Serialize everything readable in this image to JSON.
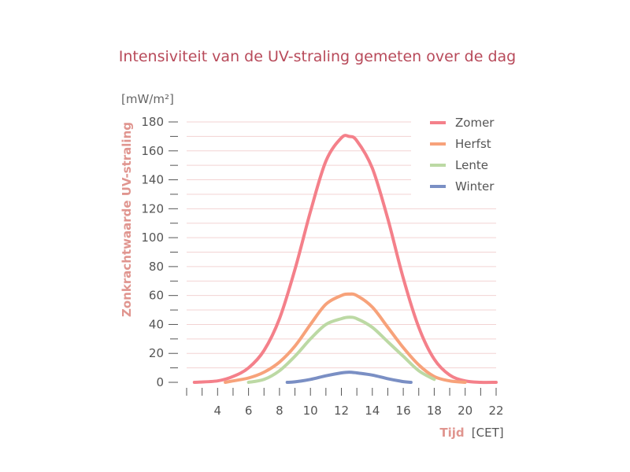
{
  "chart_data": {
    "type": "line",
    "title": "Intensiviteit van de UV-straling gemeten over de dag",
    "ylabel": "Zonkrachtwaarde UV-straling",
    "yunit": "[mW/m²]",
    "xlabel": "Tijd",
    "xunit": "[CET]",
    "xlim": [
      2,
      22
    ],
    "ylim": [
      0,
      180
    ],
    "xticks": [
      4,
      6,
      8,
      10,
      12,
      14,
      16,
      18,
      20,
      22
    ],
    "yticks": [
      0,
      20,
      40,
      60,
      80,
      100,
      120,
      140,
      160,
      180
    ],
    "grid": true,
    "legend_position": "top-right",
    "series": [
      {
        "name": "Zomer",
        "color": "#f4808a",
        "x": [
          2.5,
          4,
          5,
          6,
          7,
          8,
          9,
          10,
          11,
          12,
          12.5,
          13,
          14,
          15,
          16,
          17,
          18,
          19,
          20,
          21,
          22
        ],
        "y": [
          0,
          1,
          4,
          10,
          22,
          44,
          78,
          118,
          153,
          169,
          170,
          167,
          148,
          113,
          72,
          38,
          16,
          5,
          1,
          0,
          0
        ]
      },
      {
        "name": "Herfst",
        "color": "#f7a27a",
        "x": [
          4.5,
          5,
          6,
          7,
          8,
          9,
          10,
          11,
          12,
          12.5,
          13,
          14,
          15,
          16,
          17,
          18,
          19,
          20
        ],
        "y": [
          0,
          1,
          3,
          7,
          14,
          25,
          40,
          54,
          60,
          61,
          60,
          52,
          38,
          24,
          12,
          4,
          1,
          0
        ]
      },
      {
        "name": "Lente",
        "color": "#bcd9a4",
        "x": [
          6,
          7,
          8,
          9,
          10,
          11,
          12,
          12.5,
          13,
          14,
          15,
          16,
          17,
          18
        ],
        "y": [
          0,
          2,
          8,
          18,
          30,
          40,
          44,
          45,
          44,
          38,
          28,
          18,
          8,
          2
        ]
      },
      {
        "name": "Winter",
        "color": "#7a8fc4",
        "x": [
          8.5,
          9,
          10,
          11,
          12,
          12.5,
          13,
          14,
          15,
          16,
          16.5
        ],
        "y": [
          0,
          0.3,
          2,
          4.5,
          6.5,
          7,
          6.5,
          5,
          2.5,
          0.5,
          0
        ]
      }
    ]
  }
}
